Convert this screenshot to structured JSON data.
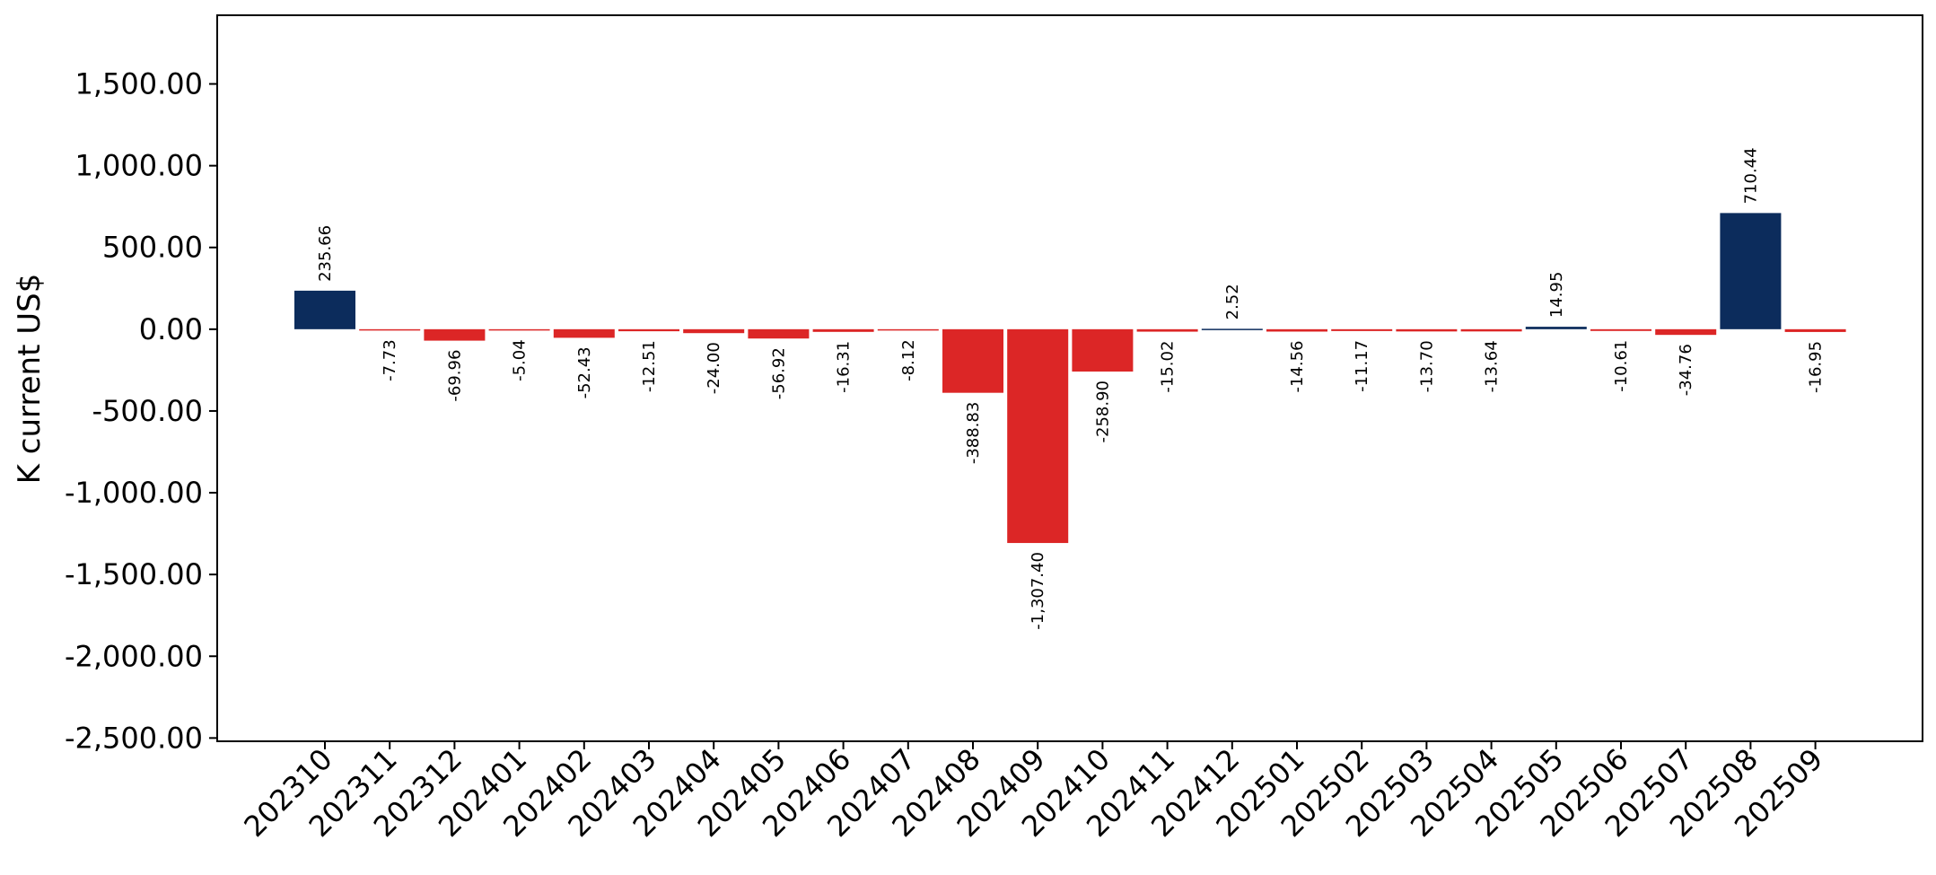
{
  "chart_data": {
    "type": "bar",
    "title": "",
    "xlabel": "",
    "ylabel": "K current US$",
    "categories": [
      "202310",
      "202311",
      "202312",
      "202401",
      "202402",
      "202403",
      "202404",
      "202405",
      "202406",
      "202407",
      "202408",
      "202409",
      "202410",
      "202411",
      "202412",
      "202501",
      "202502",
      "202503",
      "202504",
      "202505",
      "202506",
      "202507",
      "202508",
      "202509"
    ],
    "values": [
      235.66,
      -7.73,
      -69.96,
      -5.04,
      -52.43,
      -12.51,
      -24.0,
      -56.92,
      -16.31,
      -8.12,
      -388.83,
      -1307.4,
      -258.9,
      -15.02,
      2.52,
      -14.56,
      -11.17,
      -13.7,
      -13.64,
      14.95,
      -10.61,
      -34.76,
      710.44,
      -16.95
    ],
    "value_labels": [
      "235.66",
      "-7.73",
      "-69.96",
      "-5.04",
      "-52.43",
      "-12.51",
      "-24.00",
      "-56.92",
      "-16.31",
      "-8.12",
      "-388.83",
      "-1,307.40",
      "-258.90",
      "-15.02",
      "2.52",
      "-14.56",
      "-11.17",
      "-13.70",
      "-13.64",
      "14.95",
      "-10.61",
      "-34.76",
      "710.44",
      "-16.95"
    ],
    "ylim": [
      -2520,
      1920
    ],
    "yticks": [
      -2500,
      -2000,
      -1500,
      -1000,
      -500,
      0,
      500,
      1000,
      1500
    ],
    "ytick_labels": [
      "-2,500.00",
      "-2,000.00",
      "-1,500.00",
      "-1,000.00",
      "-500.00",
      "0.00",
      "500.00",
      "1,000.00",
      "1,500.00"
    ],
    "grid": false,
    "legend": "none",
    "colors": {
      "positive": "#0c2c5c",
      "negative": "#dc2626"
    }
  }
}
